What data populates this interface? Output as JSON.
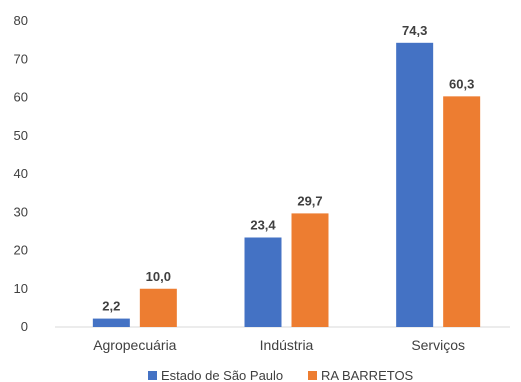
{
  "chart_data": {
    "type": "bar",
    "categories": [
      "Agropecuária",
      "Indústria",
      "Serviços"
    ],
    "series": [
      {
        "name": "Estado de São Paulo",
        "color": "#4472C4",
        "values": [
          2.2,
          23.4,
          74.3
        ],
        "labels": [
          "2,2",
          "23,4",
          "74,3"
        ]
      },
      {
        "name": "RA BARRETOS",
        "color": "#ED7D31",
        "values": [
          10.0,
          29.7,
          60.3
        ],
        "labels": [
          "10,0",
          "29,7",
          "60,3"
        ]
      }
    ],
    "ylim": [
      0,
      80
    ],
    "yticks": [
      "0",
      "10",
      "20",
      "30",
      "40",
      "50",
      "60",
      "70",
      "80"
    ],
    "grid": false,
    "legend_position": "bottom",
    "title": "",
    "xlabel": "",
    "ylabel": ""
  }
}
